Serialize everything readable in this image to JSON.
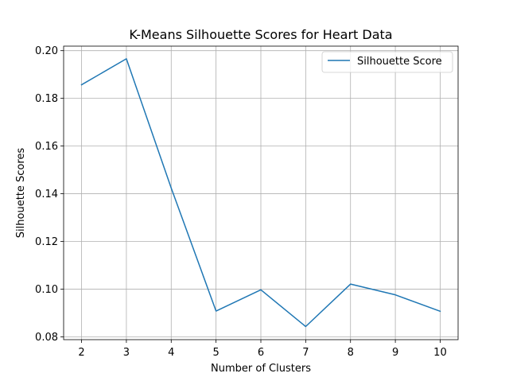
{
  "chart_data": {
    "type": "line",
    "title": "K-Means Silhouette Scores for Heart Data",
    "xlabel": "Number of Clusters",
    "ylabel": "Silhouette Scores",
    "x": [
      2,
      3,
      4,
      5,
      6,
      7,
      8,
      9,
      10
    ],
    "xticks": [
      "2",
      "3",
      "4",
      "5",
      "6",
      "7",
      "8",
      "9",
      "10"
    ],
    "yticks": [
      "0.08",
      "0.10",
      "0.12",
      "0.14",
      "0.16",
      "0.18",
      "0.20"
    ],
    "ytick_values": [
      0.08,
      0.1,
      0.12,
      0.14,
      0.16,
      0.18,
      0.2
    ],
    "xlim": [
      1.6,
      10.4
    ],
    "ylim": [
      0.0788,
      0.2019
    ],
    "grid": true,
    "legend_position": "top-right",
    "series": [
      {
        "name": "Silhouette Score",
        "color": "#1f77b4",
        "values": [
          0.1857,
          0.1966,
          0.1424,
          0.0908,
          0.0997,
          0.0843,
          0.1021,
          0.0976,
          0.0907
        ]
      }
    ]
  }
}
